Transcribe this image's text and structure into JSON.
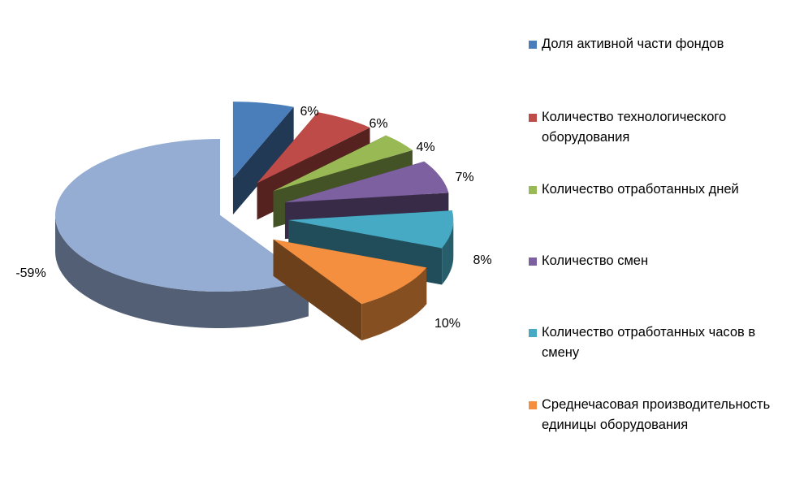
{
  "chart_data": {
    "type": "pie",
    "categories": [
      "Доля активной части фондов",
      "Количество технологического оборудования",
      "Количество отработанных дней",
      "Количество смен",
      "Количество отработанных часов в смену",
      "Среднечасовая производительность единицы оборудования",
      ""
    ],
    "values": [
      6,
      6,
      4,
      7,
      8,
      10,
      -59
    ],
    "data_labels": [
      "6%",
      "6%",
      "4%",
      "7%",
      "8%",
      "10%",
      "-59%"
    ],
    "colors": [
      "#4a7ebb",
      "#be4b48",
      "#98b954",
      "#7d60a0",
      "#46aac5",
      "#f38f3e",
      "#95acd3"
    ],
    "legend_position": "right",
    "exploded": true,
    "three_d": true
  },
  "legend": {
    "items": [
      {
        "label": "Доля активной части фондов",
        "color": "#4a7ebb"
      },
      {
        "label": "Количество технологического оборудования",
        "color": "#be4b48"
      },
      {
        "label": "Количество отработанных дней",
        "color": "#98b954"
      },
      {
        "label": "Количество смен",
        "color": "#7d60a0"
      },
      {
        "label": "Количество отработанных часов в смену",
        "color": "#46aac5"
      },
      {
        "label": "Среднечасовая производительность единицы оборудования",
        "color": "#f38f3e"
      }
    ]
  }
}
